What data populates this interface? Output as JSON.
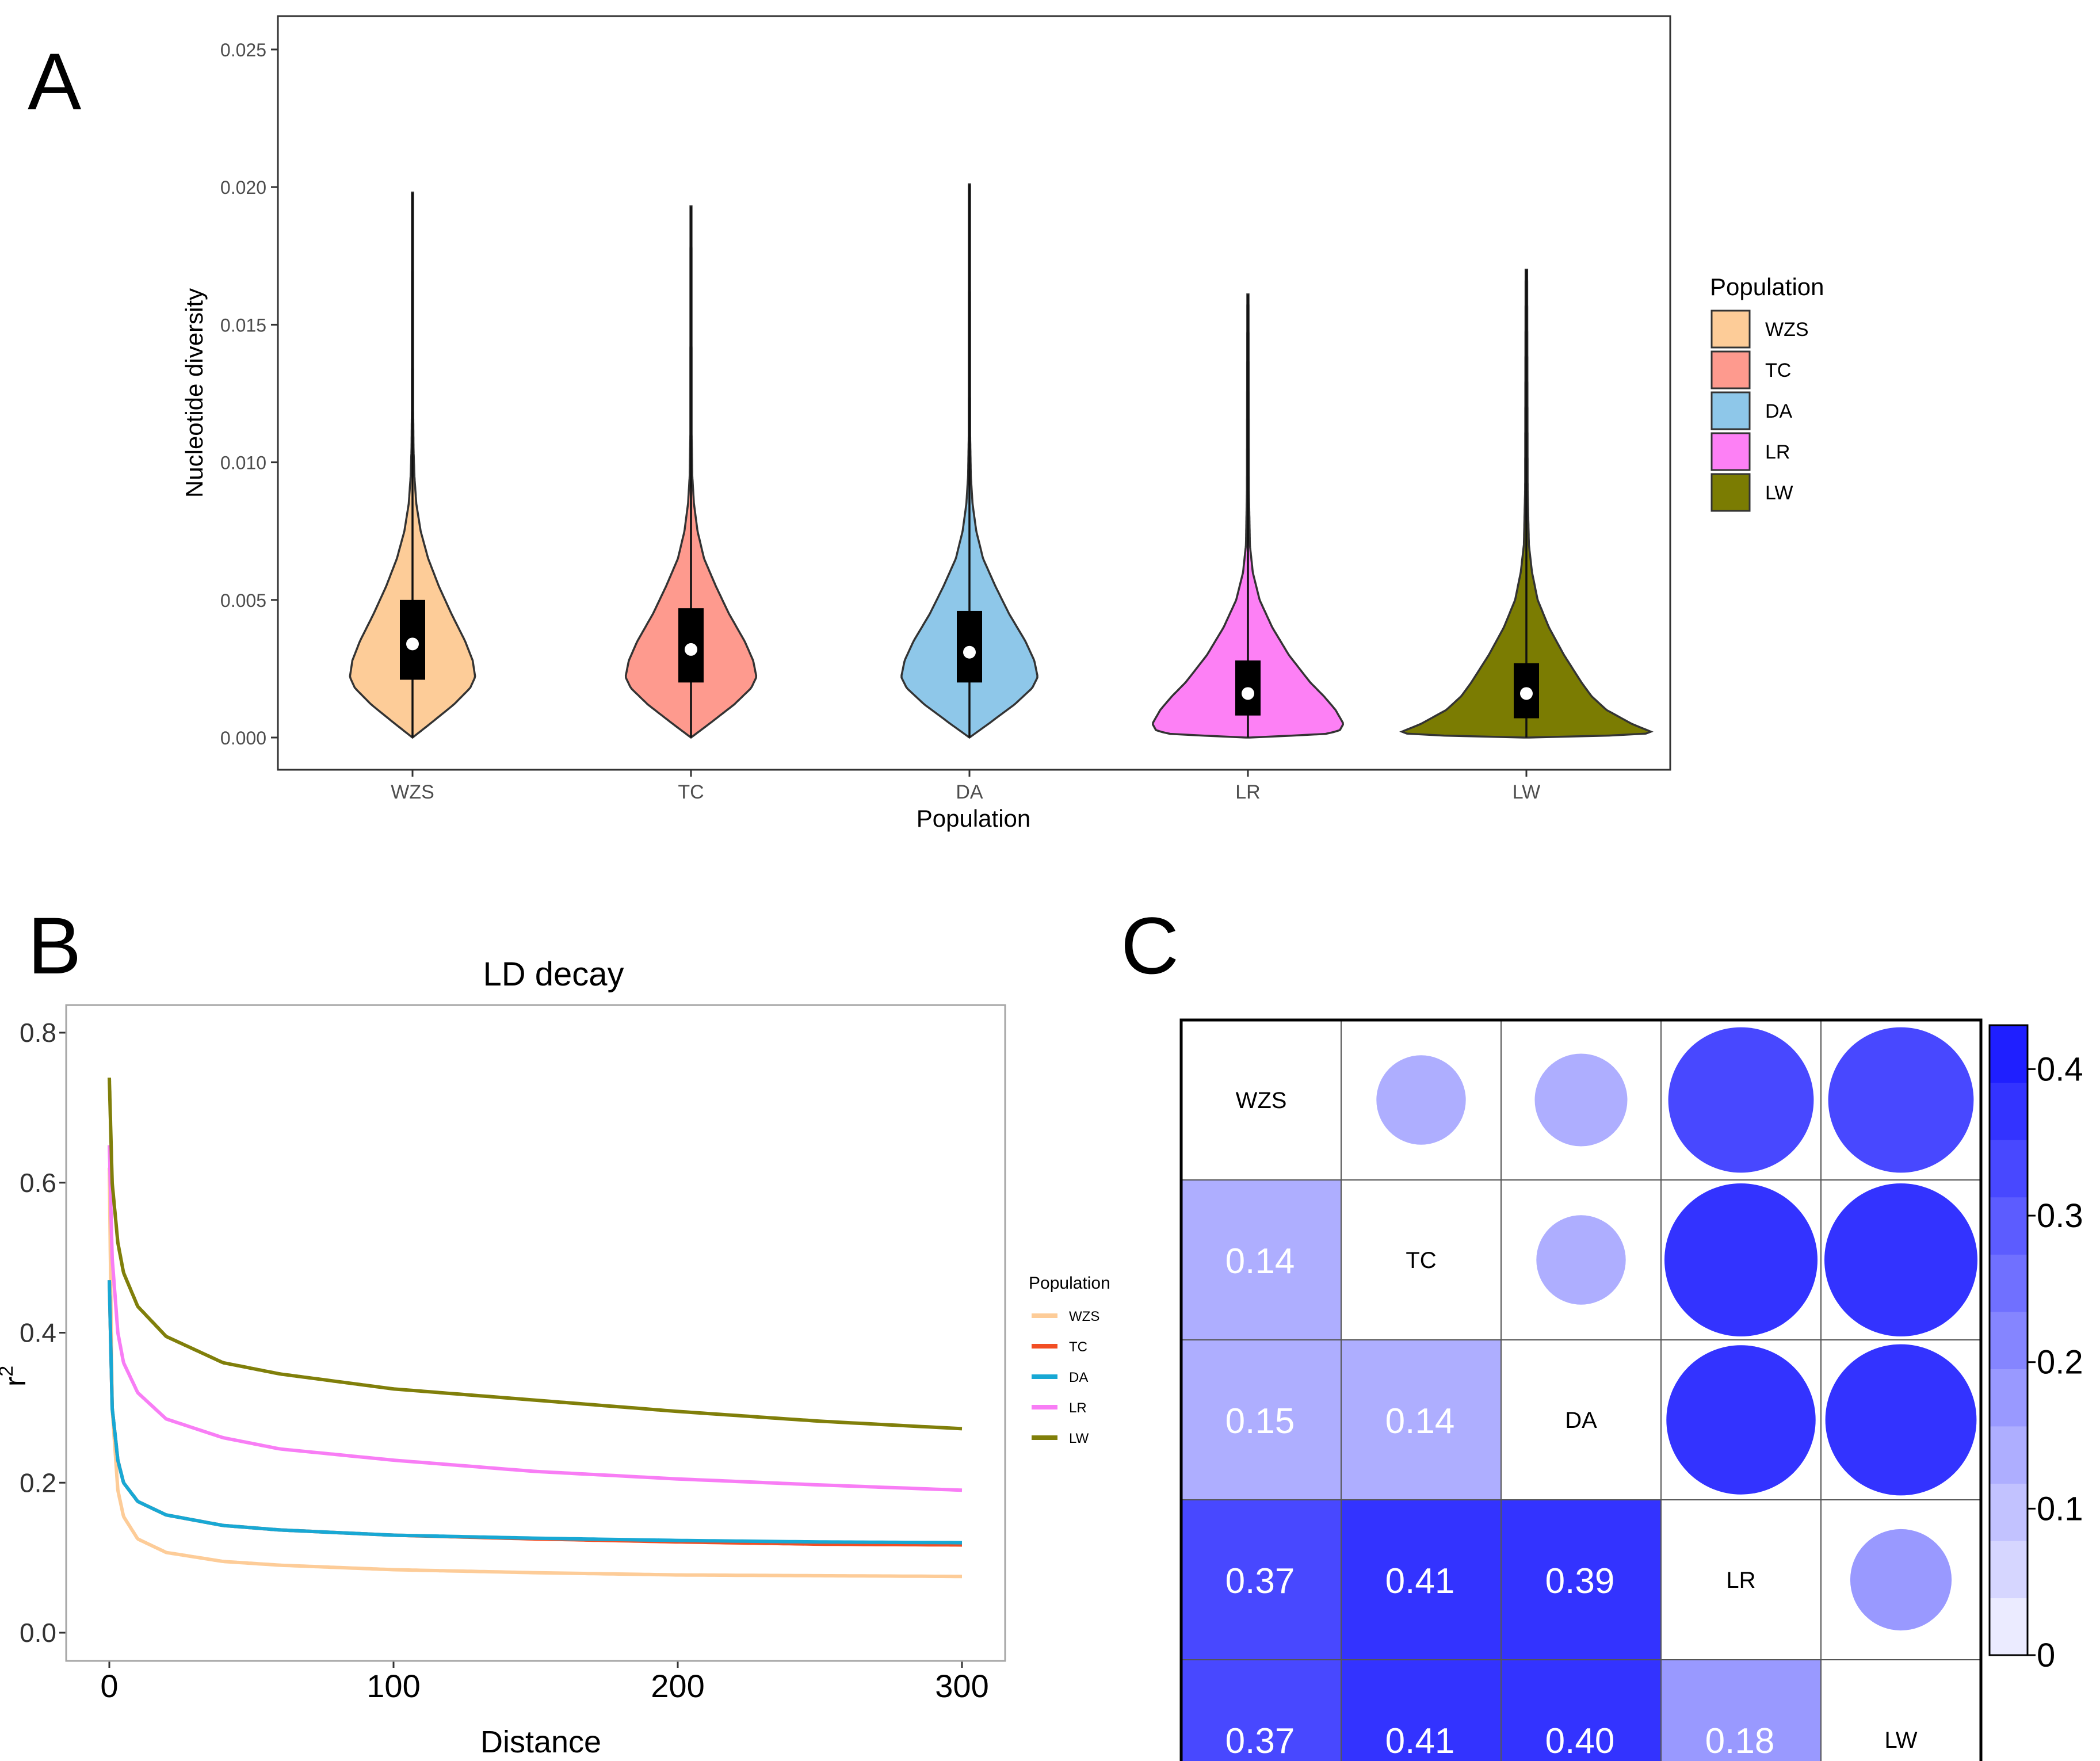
{
  "chart_data": [
    {
      "type": "violin",
      "panel_label": "A",
      "xlabel": "Population",
      "ylabel": "Nucleotide diversity",
      "ylim": [
        0,
        0.026
      ],
      "yticks": [
        0.0,
        0.005,
        0.01,
        0.015,
        0.02,
        0.025
      ],
      "ytick_labels": [
        "0.000",
        "0.005",
        "0.010",
        "0.015",
        "0.020",
        "0.025"
      ],
      "categories": [
        "WZS",
        "TC",
        "DA",
        "LR",
        "LW"
      ],
      "legend": {
        "title": "Population",
        "position": "right",
        "items": [
          {
            "label": "WZS",
            "color": "#FDCC98"
          },
          {
            "label": "TC",
            "color": "#FE9A8E"
          },
          {
            "label": "DA",
            "color": "#8EC7E9"
          },
          {
            "label": "LR",
            "color": "#FD80F5"
          },
          {
            "label": "LW",
            "color": "#7B7C02"
          }
        ]
      },
      "series": [
        {
          "name": "WZS",
          "color": "#FDCC98",
          "min": 0.0,
          "q1": 0.0021,
          "median": 0.0034,
          "q3": 0.005,
          "max": 0.0198,
          "mode": 0.0024,
          "halfwidth": 0.45,
          "profile": [
            [
              0.0,
              0.0
            ],
            [
              0.0005,
              0.28
            ],
            [
              0.0012,
              0.66
            ],
            [
              0.0018,
              0.92
            ],
            [
              0.0022,
              1.0
            ],
            [
              0.0028,
              0.96
            ],
            [
              0.0035,
              0.84
            ],
            [
              0.0045,
              0.62
            ],
            [
              0.0055,
              0.42
            ],
            [
              0.0065,
              0.25
            ],
            [
              0.0075,
              0.13
            ],
            [
              0.0085,
              0.06
            ],
            [
              0.0095,
              0.03
            ],
            [
              0.0105,
              0.016
            ],
            [
              0.012,
              0.01
            ],
            [
              0.0198,
              0.008
            ]
          ]
        },
        {
          "name": "TC",
          "color": "#FE9A8E",
          "min": 0.0,
          "q1": 0.002,
          "median": 0.0032,
          "q3": 0.0047,
          "max": 0.0193,
          "mode": 0.0022,
          "halfwidth": 0.47,
          "profile": [
            [
              0.0,
              0.0
            ],
            [
              0.0005,
              0.28
            ],
            [
              0.0012,
              0.66
            ],
            [
              0.0018,
              0.92
            ],
            [
              0.0022,
              1.0
            ],
            [
              0.0028,
              0.95
            ],
            [
              0.0035,
              0.82
            ],
            [
              0.0045,
              0.58
            ],
            [
              0.0055,
              0.38
            ],
            [
              0.0065,
              0.2
            ],
            [
              0.0075,
              0.1
            ],
            [
              0.0085,
              0.045
            ],
            [
              0.0095,
              0.02
            ],
            [
              0.011,
              0.01
            ],
            [
              0.0193,
              0.008
            ]
          ]
        },
        {
          "name": "DA",
          "color": "#8EC7E9",
          "min": 0.0,
          "q1": 0.002,
          "median": 0.0031,
          "q3": 0.0046,
          "max": 0.0201,
          "mode": 0.0022,
          "halfwidth": 0.49,
          "profile": [
            [
              0.0,
              0.0
            ],
            [
              0.0005,
              0.28
            ],
            [
              0.0012,
              0.66
            ],
            [
              0.0018,
              0.92
            ],
            [
              0.0022,
              1.0
            ],
            [
              0.0028,
              0.95
            ],
            [
              0.0035,
              0.82
            ],
            [
              0.0045,
              0.58
            ],
            [
              0.0055,
              0.38
            ],
            [
              0.0065,
              0.2
            ],
            [
              0.0075,
              0.1
            ],
            [
              0.0085,
              0.045
            ],
            [
              0.0095,
              0.02
            ],
            [
              0.011,
              0.01
            ],
            [
              0.0201,
              0.008
            ]
          ]
        },
        {
          "name": "LR",
          "color": "#FD80F5",
          "min": 0.0,
          "q1": 0.0008,
          "median": 0.0016,
          "q3": 0.0028,
          "max": 0.0161,
          "mode": 0.0002,
          "halfwidth": 0.7,
          "profile": [
            [
              0.0,
              0.02
            ],
            [
              0.00012,
              0.78
            ],
            [
              0.00025,
              0.94
            ],
            [
              0.0005,
              0.98
            ],
            [
              0.001,
              0.9
            ],
            [
              0.0015,
              0.78
            ],
            [
              0.002,
              0.64
            ],
            [
              0.003,
              0.42
            ],
            [
              0.004,
              0.25
            ],
            [
              0.005,
              0.12
            ],
            [
              0.006,
              0.05
            ],
            [
              0.007,
              0.02
            ],
            [
              0.009,
              0.01
            ],
            [
              0.0161,
              0.006
            ]
          ]
        },
        {
          "name": "LW",
          "color": "#7B7C02",
          "min": 0.0,
          "q1": 0.0007,
          "median": 0.0016,
          "q3": 0.0027,
          "max": 0.017,
          "mode": 0.0002,
          "halfwidth": 0.9,
          "profile": [
            [
              0.0,
              0.02
            ],
            [
              0.0001,
              0.92
            ],
            [
              0.0002,
              1.0
            ],
            [
              0.0005,
              0.84
            ],
            [
              0.001,
              0.64
            ],
            [
              0.0015,
              0.52
            ],
            [
              0.002,
              0.44
            ],
            [
              0.003,
              0.3
            ],
            [
              0.004,
              0.18
            ],
            [
              0.005,
              0.09
            ],
            [
              0.006,
              0.045
            ],
            [
              0.007,
              0.02
            ],
            [
              0.009,
              0.01
            ],
            [
              0.017,
              0.006
            ]
          ]
        }
      ]
    },
    {
      "type": "line",
      "panel_label": "B",
      "title": "LD decay",
      "xlabel": "Distance",
      "ylabel": "r",
      "ylabel_sup": "2",
      "xlim": [
        -15,
        315
      ],
      "ylim": [
        -0.04,
        0.84
      ],
      "xticks": [
        0,
        100,
        200,
        300
      ],
      "xtick_labels": [
        "0",
        "100",
        "200",
        "300"
      ],
      "yticks": [
        0.0,
        0.2,
        0.4,
        0.6,
        0.8
      ],
      "ytick_labels": [
        "0.0",
        "0.2",
        "0.4",
        "0.6",
        "0.8"
      ],
      "legend": {
        "title": "Population",
        "position": "right"
      },
      "series": [
        {
          "name": "WZS",
          "color": "#FDCC98",
          "x": [
            0,
            1,
            3,
            5,
            10,
            20,
            40,
            60,
            100,
            150,
            200,
            250,
            300
          ],
          "y": [
            0.62,
            0.3,
            0.19,
            0.155,
            0.125,
            0.107,
            0.095,
            0.09,
            0.084,
            0.08,
            0.077,
            0.076,
            0.075
          ]
        },
        {
          "name": "TC",
          "color": "#F24E24",
          "x": [
            0,
            1,
            3,
            5,
            10,
            20,
            40,
            60,
            100,
            150,
            200,
            250,
            300
          ],
          "y": [
            0.47,
            0.3,
            0.23,
            0.2,
            0.175,
            0.157,
            0.143,
            0.137,
            0.13,
            0.125,
            0.121,
            0.118,
            0.117
          ]
        },
        {
          "name": "DA",
          "color": "#18A8D4",
          "x": [
            0,
            1,
            3,
            5,
            10,
            20,
            40,
            60,
            100,
            150,
            200,
            250,
            300
          ],
          "y": [
            0.47,
            0.3,
            0.23,
            0.2,
            0.175,
            0.157,
            0.143,
            0.137,
            0.13,
            0.126,
            0.123,
            0.121,
            0.12
          ]
        },
        {
          "name": "LR",
          "color": "#F87DF5",
          "x": [
            0,
            1,
            3,
            5,
            10,
            20,
            40,
            60,
            100,
            150,
            200,
            250,
            300
          ],
          "y": [
            0.65,
            0.5,
            0.4,
            0.36,
            0.32,
            0.285,
            0.26,
            0.245,
            0.23,
            0.215,
            0.205,
            0.197,
            0.19
          ]
        },
        {
          "name": "LW",
          "color": "#807F0A",
          "x": [
            0,
            1,
            3,
            5,
            10,
            20,
            40,
            60,
            100,
            150,
            200,
            250,
            300
          ],
          "y": [
            0.74,
            0.6,
            0.52,
            0.48,
            0.435,
            0.395,
            0.36,
            0.345,
            0.325,
            0.31,
            0.295,
            0.282,
            0.272
          ]
        }
      ]
    },
    {
      "type": "heatmap",
      "panel_label": "C",
      "labels": [
        "WZS",
        "TC",
        "DA",
        "LR",
        "LW"
      ],
      "matrix": [
        [
          null,
          0.14,
          0.15,
          0.37,
          0.37
        ],
        [
          0.14,
          null,
          0.14,
          0.41,
          0.41
        ],
        [
          0.15,
          0.14,
          null,
          0.39,
          0.4
        ],
        [
          0.37,
          0.41,
          0.39,
          null,
          0.18
        ],
        [
          0.37,
          0.41,
          0.4,
          0.18,
          null
        ]
      ],
      "value_labels": [
        [
          "",
          "",
          "",
          "",
          ""
        ],
        [
          "0.14",
          "",
          "",
          "",
          ""
        ],
        [
          "0.15",
          "0.14",
          "",
          "",
          ""
        ],
        [
          "0.37",
          "0.41",
          "0.39",
          "",
          ""
        ],
        [
          "0.37",
          "0.41",
          "0.40",
          "0.18",
          ""
        ]
      ],
      "upper_triangle": "circles",
      "lower_triangle": "colored-cells-with-values",
      "colorbar": {
        "min": 0,
        "max": 0.43,
        "ticks": [
          0,
          0.1,
          0.2,
          0.3,
          0.4
        ],
        "tick_labels": [
          "0",
          "0.1",
          "0.2",
          "0.3",
          "0.4"
        ],
        "color_low": "#FFFFFF",
        "color_high": "#1F1FFF",
        "position": "right"
      }
    }
  ]
}
